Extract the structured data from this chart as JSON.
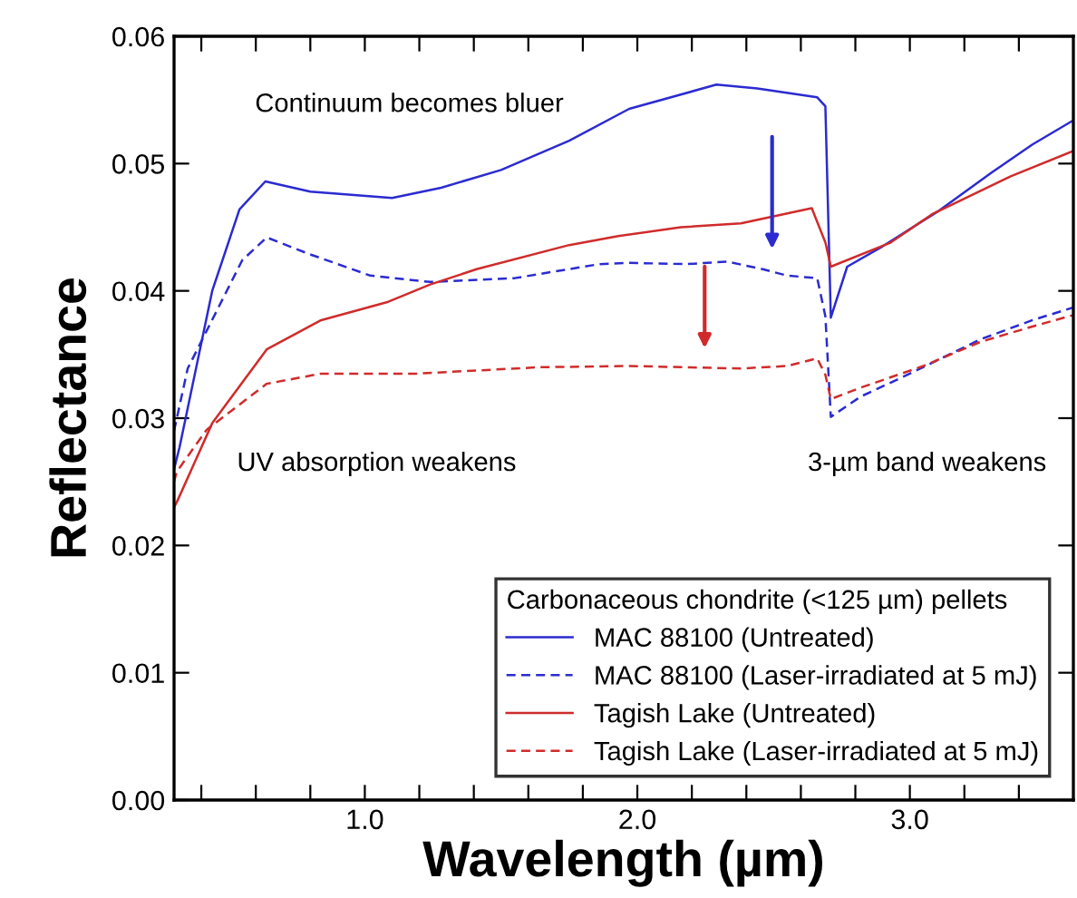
{
  "chart_data": {
    "type": "line",
    "xlabel": "Wavelength (µm)",
    "ylabel": "Reflectance",
    "legend_title": "Carbonaceous chondrite (<125 µm) pellets",
    "legend": "bottom right",
    "grid": false,
    "marker": "none",
    "xlim": [
      0.3,
      3.6
    ],
    "ylim": [
      0,
      0.06
    ],
    "xticks": [
      {
        "value": 0.4,
        "label": null
      },
      {
        "value": 0.6,
        "label": null
      },
      {
        "value": 0.8,
        "label": null
      },
      {
        "value": 1.0,
        "label": "1.0"
      },
      {
        "value": 1.2,
        "label": null
      },
      {
        "value": 1.4,
        "label": null
      },
      {
        "value": 1.6,
        "label": null
      },
      {
        "value": 1.8,
        "label": null
      },
      {
        "value": 2.0,
        "label": "2.0"
      },
      {
        "value": 2.2,
        "label": null
      },
      {
        "value": 2.4,
        "label": null
      },
      {
        "value": 2.6,
        "label": null
      },
      {
        "value": 2.8,
        "label": null
      },
      {
        "value": 3.0,
        "label": "3.0"
      },
      {
        "value": 3.2,
        "label": null
      },
      {
        "value": 3.4,
        "label": null
      }
    ],
    "yticks": [
      {
        "value": 0,
        "label": "0.00"
      },
      {
        "value": 0.01,
        "label": "0.01"
      },
      {
        "value": 0.02,
        "label": "0.02"
      },
      {
        "value": 0.03,
        "label": "0.03"
      },
      {
        "value": 0.04,
        "label": "0.04"
      },
      {
        "value": 0.05,
        "label": "0.05"
      },
      {
        "value": 0.06,
        "label": "0.06"
      }
    ],
    "annotations": [
      "Continuum becomes bluer",
      "UV absorption weakens",
      "3-µm band weakens"
    ],
    "series": [
      {
        "name": "MAC 88100 (Untreated)",
        "color": "#2b2bd0",
        "line_style": "solid",
        "x": [
          0.3,
          0.32,
          0.44,
          0.54,
          0.635,
          0.8,
          1.1,
          1.28,
          1.5,
          1.75,
          1.97,
          2.29,
          2.44,
          2.66,
          2.69,
          2.71,
          2.77,
          2.9,
          3.1,
          3.3,
          3.45,
          3.6
        ],
        "values": [
          0.026,
          0.0277,
          0.04,
          0.0464,
          0.0486,
          0.0478,
          0.0473,
          0.0481,
          0.0495,
          0.0518,
          0.0543,
          0.0562,
          0.0559,
          0.0552,
          0.0545,
          0.0379,
          0.0419,
          0.0435,
          0.0462,
          0.0493,
          0.0515,
          0.0534
        ]
      },
      {
        "name": "MAC 88100 (Laser-irradiated at 5 mJ)",
        "color": "#2b2bd0",
        "line_style": "dashed",
        "x": [
          0.3,
          0.35,
          0.55,
          0.64,
          0.795,
          1.02,
          1.24,
          1.55,
          1.86,
          1.97,
          2.18,
          2.33,
          2.46,
          2.55,
          2.66,
          2.69,
          2.71,
          2.82,
          3.0,
          3.26,
          3.45,
          3.6
        ],
        "values": [
          0.029,
          0.0339,
          0.0424,
          0.0442,
          0.0429,
          0.0412,
          0.0407,
          0.041,
          0.0421,
          0.0422,
          0.0421,
          0.0423,
          0.0417,
          0.0412,
          0.041,
          0.038,
          0.0301,
          0.0317,
          0.0335,
          0.0362,
          0.0377,
          0.0387
        ]
      },
      {
        "name": "Tagish Lake (Untreated)",
        "color": "#d02b2b",
        "line_style": "solid",
        "x": [
          0.3,
          0.31,
          0.44,
          0.64,
          0.84,
          1.08,
          1.24,
          1.41,
          1.75,
          1.93,
          2.16,
          2.38,
          2.64,
          2.69,
          2.71,
          2.93,
          3.08,
          3.37,
          3.6
        ],
        "values": [
          0.023,
          0.0234,
          0.0296,
          0.0354,
          0.0377,
          0.0391,
          0.0405,
          0.0417,
          0.0436,
          0.0443,
          0.045,
          0.0453,
          0.0465,
          0.0438,
          0.0419,
          0.0438,
          0.046,
          0.049,
          0.051
        ]
      },
      {
        "name": "Tagish Lake (Laser-irradiated at 5 mJ)",
        "color": "#d02b2b",
        "line_style": "dashed",
        "x": [
          0.3,
          0.31,
          0.42,
          0.64,
          0.84,
          1.19,
          1.64,
          1.97,
          2.38,
          2.55,
          2.66,
          2.69,
          2.71,
          2.82,
          3.05,
          3.26,
          3.45,
          3.6
        ],
        "values": [
          0.025,
          0.0258,
          0.0291,
          0.0327,
          0.0335,
          0.0335,
          0.034,
          0.0341,
          0.0339,
          0.0341,
          0.0347,
          0.0334,
          0.0315,
          0.0324,
          0.0341,
          0.036,
          0.0372,
          0.0381
        ]
      }
    ]
  }
}
